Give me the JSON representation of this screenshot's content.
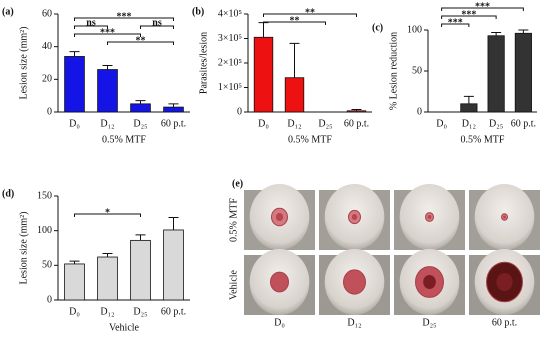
{
  "chart_data": [
    {
      "type": "bar",
      "panel": "(a)",
      "y_label": "Lesion size (mm²)",
      "x_label": "0.5% MTF",
      "categories": [
        "D₀",
        "D₁₂",
        "D₂₅",
        "60 p.t."
      ],
      "values": [
        34,
        26,
        5,
        3
      ],
      "errors": [
        3,
        2.5,
        2,
        2
      ],
      "color": "#1414e6",
      "ylim": [
        0,
        60
      ],
      "yticks": [
        0,
        20,
        40,
        60
      ],
      "annotations": [
        {
          "text": "***",
          "from": "D₀",
          "to": "60 p.t."
        },
        {
          "text": "ns",
          "from": "D₀",
          "to": "D₁₂"
        },
        {
          "text": "ns",
          "from": "D₂₅",
          "to": "60 p.t."
        },
        {
          "text": "***",
          "from": "D₀",
          "to": "D₂₅"
        },
        {
          "text": "**",
          "from": "D₁₂",
          "to": "60 p.t."
        }
      ]
    },
    {
      "type": "bar",
      "panel": "(b)",
      "y_label": "Parasites/lesion",
      "x_label": "0.5% MTF",
      "categories": [
        "D₀",
        "D₁₂",
        "D₂₅",
        "60 p.t."
      ],
      "values": [
        305000,
        140000,
        0,
        5000
      ],
      "errors": [
        60000,
        140000,
        0,
        5000
      ],
      "color": "#ee1111",
      "ylim": [
        0,
        400000
      ],
      "yticks": [
        0,
        {
          "value": 100000,
          "label": "1×10⁵"
        },
        {
          "value": 200000,
          "label": "2×10⁵"
        },
        {
          "value": 300000,
          "label": "3×10⁵"
        },
        {
          "value": 400000,
          "label": "4×10⁵"
        }
      ],
      "annotations": [
        {
          "text": "**",
          "from": "D₀",
          "to": "60 p.t."
        },
        {
          "text": "**",
          "from": "D₀",
          "to": "D₂₅"
        }
      ]
    },
    {
      "type": "bar",
      "panel": "(c)",
      "y_label": "% Lesion reduction",
      "x_label": "0.5% MTF",
      "categories": [
        "D₀",
        "D₁₂",
        "D₂₅",
        "60 p.t."
      ],
      "values": [
        0,
        10,
        93,
        96
      ],
      "errors": [
        0,
        9,
        4,
        4
      ],
      "color": "#333333",
      "ylim": [
        0,
        100
      ],
      "yticks": [
        0,
        50,
        100
      ],
      "annotations": [
        {
          "text": "***",
          "from": "D₀",
          "to": "60 p.t."
        },
        {
          "text": "***",
          "from": "D₀",
          "to": "D₂₅"
        },
        {
          "text": "***",
          "from": "D₀",
          "to": "D₁₂"
        }
      ]
    },
    {
      "type": "bar",
      "panel": "(d)",
      "y_label": "Lesion size (mm²)",
      "x_label": "Vehicle",
      "categories": [
        "D₀",
        "D₁₂",
        "D₂₅",
        "60 p.t."
      ],
      "values": [
        52,
        62,
        86,
        101
      ],
      "errors": [
        4,
        5,
        8,
        18
      ],
      "color": "#d9d9d9",
      "ylim": [
        0,
        150
      ],
      "yticks": [
        0,
        50,
        100,
        150
      ],
      "annotations": [
        {
          "text": "*",
          "from": "D₀",
          "to": "D₂₅"
        }
      ]
    }
  ],
  "photos": {
    "panel": "(e)",
    "row_labels": [
      "0.5% MTF",
      "Vehicle"
    ],
    "column_labels": [
      "D₀",
      "D₁₂",
      "D₂₅",
      "60 p.t."
    ]
  }
}
